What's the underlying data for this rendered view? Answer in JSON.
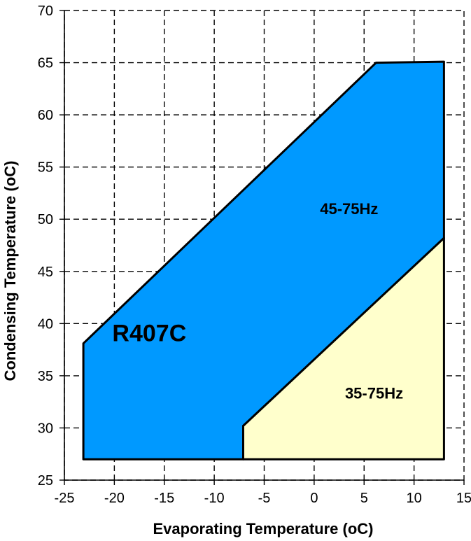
{
  "chart_data": {
    "type": "area",
    "title": "",
    "xlabel": "Evaporating Temperature (oC)",
    "ylabel": "Condensing Temperature (oC)",
    "xlim": [
      -25,
      15
    ],
    "ylim": [
      25,
      70
    ],
    "xticks": [
      -25,
      -20,
      -15,
      -10,
      -5,
      0,
      5,
      10,
      15
    ],
    "yticks": [
      25,
      30,
      35,
      40,
      45,
      50,
      55,
      60,
      65,
      70
    ],
    "grid": true,
    "regions": [
      {
        "name": "45-75Hz",
        "color": "#0099ff",
        "points": [
          [
            -23.1,
            27
          ],
          [
            -23.1,
            38.1
          ],
          [
            6.2,
            65
          ],
          [
            13,
            65.1
          ],
          [
            13,
            48.2
          ],
          [
            -7.1,
            30.2
          ],
          [
            -7.1,
            27
          ]
        ]
      },
      {
        "name": "35-75Hz",
        "color": "#ffffcc",
        "points": [
          [
            -7.1,
            27
          ],
          [
            -7.1,
            30.2
          ],
          [
            13,
            48.2
          ],
          [
            13,
            27
          ]
        ]
      }
    ],
    "annotations": [
      {
        "text": "R407C",
        "x": -16.5,
        "y": 38.3,
        "size": "large"
      },
      {
        "text": "45-75Hz",
        "x": 3.5,
        "y": 50.5,
        "size": "small"
      },
      {
        "text": "35-75Hz",
        "x": 6,
        "y": 32.8,
        "size": "small"
      }
    ]
  }
}
